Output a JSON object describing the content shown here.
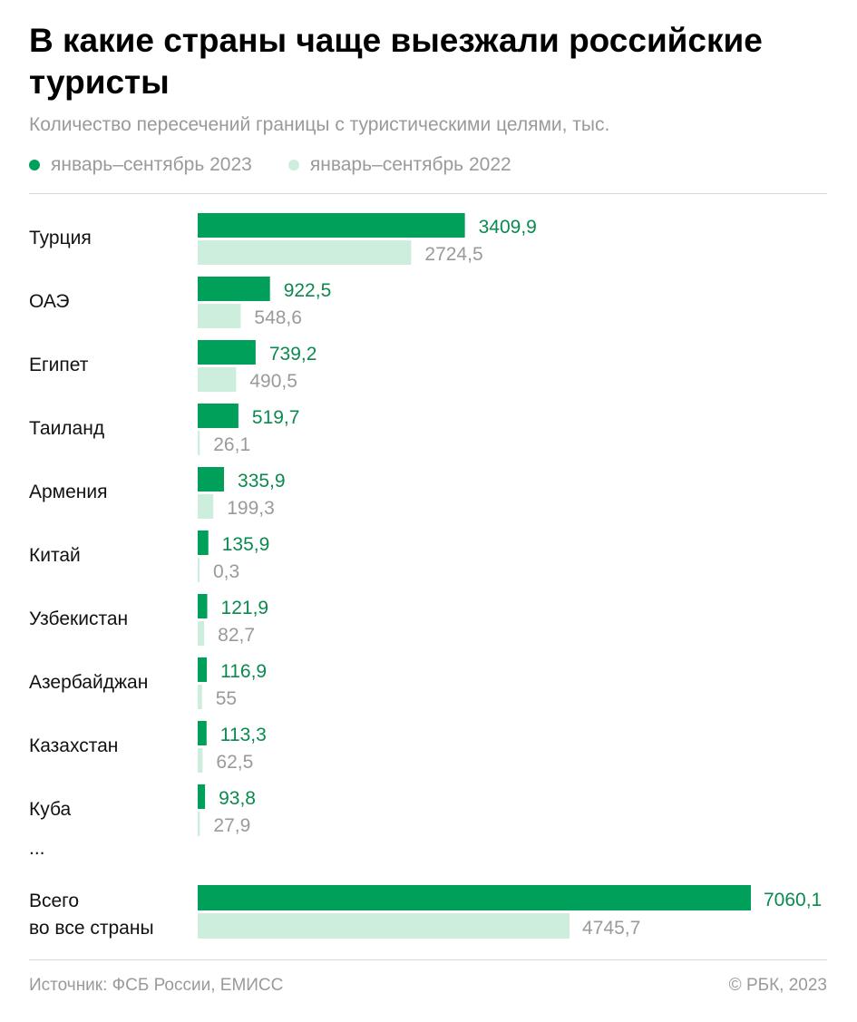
{
  "header": {
    "title": "В какие страны чаще выезжали российские туристы",
    "subtitle": "Количество пересечений границы с туристическими целями, тыс."
  },
  "legend": [
    {
      "label": "январь–сентябрь 2023",
      "color": "#00a05a"
    },
    {
      "label": "январь–сентябрь 2022",
      "color": "#cdeedd"
    }
  ],
  "chart_data": {
    "type": "bar",
    "orientation": "horizontal",
    "title": "В какие страны чаще выезжали российские туристы",
    "subtitle": "Количество пересечений границы с туристическими целями, тыс.",
    "categories": [
      "Турция",
      "ОАЭ",
      "Египет",
      "Таиланд",
      "Армения",
      "Китай",
      "Узбекистан",
      "Азербайджан",
      "Казахстан",
      "Куба"
    ],
    "series": [
      {
        "name": "январь–сентябрь 2023",
        "color": "#00a05a",
        "values": [
          3409.9,
          922.5,
          739.2,
          519.7,
          335.9,
          135.9,
          121.9,
          116.9,
          113.3,
          93.8
        ],
        "labels": [
          "3409,9",
          "922,5",
          "739,2",
          "519,7",
          "335,9",
          "135,9",
          "121,9",
          "116,9",
          "113,3",
          "93,8"
        ]
      },
      {
        "name": "январь–сентябрь 2022",
        "color": "#cdeedd",
        "values": [
          2724.5,
          548.6,
          490.5,
          26.1,
          199.3,
          0.3,
          82.7,
          55,
          62.5,
          27.9
        ],
        "labels": [
          "2724,5",
          "548,6",
          "490,5",
          "26,1",
          "199,3",
          "0,3",
          "82,7",
          "55",
          "62,5",
          "27,9"
        ]
      }
    ],
    "ellipsis": "...",
    "total": {
      "label_line1": "Всего",
      "label_line2": "во все страны",
      "values": [
        7060.1,
        4745.7
      ],
      "labels": [
        "7060,1",
        "4745,7"
      ]
    },
    "xlim": [
      0,
      7060.1
    ],
    "grid": false,
    "legend_position": "top-left"
  },
  "footer": {
    "source": "Источник: ФСБ России, ЕМИСС",
    "copyright": "© РБК, 2023"
  }
}
